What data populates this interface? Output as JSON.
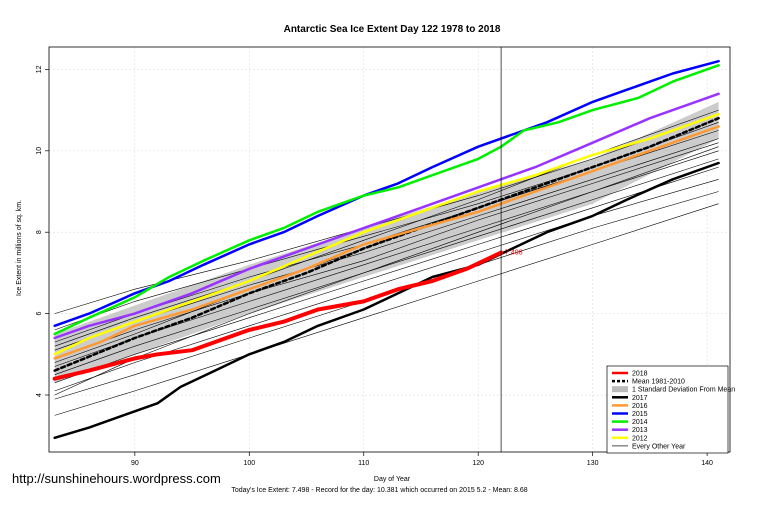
{
  "website": "http://sunshinehours.wordpress.com",
  "footer": "Today's Ice Extent: 7.498  - Record for the day: 10.381 which occurred on 2015 5.2  - Mean: 8.68",
  "chart_data": {
    "type": "line",
    "title": "Antarctic Sea Ice Extent Day 122 1978 to 2018",
    "xlabel": "Day of Year",
    "ylabel": "Ice Extent in millions of sq. km.",
    "xlim": [
      82.5,
      142
    ],
    "ylim": [
      2.6,
      12.55
    ],
    "xticks": [
      90,
      100,
      110,
      120,
      130,
      140
    ],
    "yticks": [
      4,
      6,
      8,
      10,
      12
    ],
    "current_day": 122,
    "current_value_label": "7.498",
    "legend_position": "bottom-right",
    "std_band": {
      "name": "1 Standard Deviation From Mean",
      "x": [
        83,
        90,
        100,
        110,
        120,
        130,
        141
      ],
      "upper": [
        5.5,
        6.2,
        7.2,
        8.1,
        9.0,
        9.8,
        11.2
      ],
      "lower": [
        4.3,
        5.0,
        6.0,
        6.9,
        7.8,
        8.7,
        10.3
      ]
    },
    "series": [
      {
        "name": "2018",
        "color": "#ff0000",
        "width": 4,
        "dash": "",
        "x": [
          83,
          86,
          90,
          92,
          95,
          98,
          100,
          103,
          106,
          110,
          113,
          116,
          119,
          122
        ],
        "y": [
          4.4,
          4.6,
          4.9,
          5.0,
          5.1,
          5.4,
          5.6,
          5.8,
          6.1,
          6.3,
          6.6,
          6.8,
          7.1,
          7.5
        ]
      },
      {
        "name": "Mean 1981-2010",
        "color": "#000000",
        "width": 2.5,
        "dash": "4,3",
        "x": [
          83,
          90,
          95,
          100,
          105,
          110,
          115,
          120,
          125,
          130,
          135,
          141
        ],
        "y": [
          4.6,
          5.4,
          5.9,
          6.5,
          7.0,
          7.6,
          8.1,
          8.6,
          9.1,
          9.6,
          10.1,
          10.8
        ]
      },
      {
        "name": "2017",
        "color": "#000000",
        "width": 2.5,
        "dash": "",
        "x": [
          83,
          86,
          90,
          92,
          94,
          97,
          100,
          103,
          106,
          110,
          113,
          116,
          120,
          123,
          126,
          130,
          133,
          137,
          141
        ],
        "y": [
          2.95,
          3.2,
          3.6,
          3.8,
          4.2,
          4.6,
          5.0,
          5.3,
          5.7,
          6.1,
          6.5,
          6.9,
          7.2,
          7.6,
          8.0,
          8.4,
          8.8,
          9.3,
          9.7
        ]
      },
      {
        "name": "2016",
        "color": "#ff9933",
        "width": 2.5,
        "dash": "",
        "x": [
          83,
          87,
          90,
          95,
          100,
          105,
          110,
          115,
          120,
          125,
          130,
          135,
          141
        ],
        "y": [
          4.9,
          5.3,
          5.7,
          6.1,
          6.6,
          7.1,
          7.7,
          8.1,
          8.5,
          9.0,
          9.5,
          10.0,
          10.6
        ]
      },
      {
        "name": "2015",
        "color": "#0000ff",
        "width": 2.5,
        "dash": "",
        "x": [
          83,
          86,
          90,
          93,
          96,
          100,
          103,
          106,
          110,
          113,
          116,
          120,
          123,
          126,
          130,
          133,
          137,
          141
        ],
        "y": [
          5.7,
          6.0,
          6.5,
          6.8,
          7.2,
          7.7,
          8.0,
          8.4,
          8.9,
          9.2,
          9.6,
          10.1,
          10.4,
          10.7,
          11.2,
          11.5,
          11.9,
          12.2
        ]
      },
      {
        "name": "2014",
        "color": "#00ee00",
        "width": 2.5,
        "dash": "",
        "x": [
          83,
          86,
          90,
          93,
          96,
          100,
          103,
          106,
          110,
          113,
          116,
          120,
          122,
          124,
          127,
          130,
          134,
          137,
          141
        ],
        "y": [
          5.5,
          5.9,
          6.4,
          6.9,
          7.3,
          7.8,
          8.1,
          8.5,
          8.9,
          9.1,
          9.4,
          9.8,
          10.1,
          10.5,
          10.7,
          11.0,
          11.3,
          11.7,
          12.1
        ]
      },
      {
        "name": "2013",
        "color": "#9933ff",
        "width": 2.5,
        "dash": "",
        "x": [
          83,
          86,
          90,
          95,
          100,
          105,
          110,
          115,
          120,
          125,
          130,
          135,
          141
        ],
        "y": [
          5.4,
          5.7,
          6.0,
          6.5,
          7.1,
          7.6,
          8.1,
          8.6,
          9.1,
          9.6,
          10.2,
          10.8,
          11.4
        ]
      },
      {
        "name": "2012",
        "color": "#ffff00",
        "width": 2.5,
        "dash": "",
        "x": [
          83,
          86,
          90,
          95,
          100,
          105,
          110,
          115,
          120,
          125,
          130,
          135,
          141
        ],
        "y": [
          5.0,
          5.4,
          5.8,
          6.3,
          6.8,
          7.4,
          8.0,
          8.5,
          9.0,
          9.4,
          9.9,
          10.3,
          10.9
        ]
      }
    ],
    "other_years": {
      "name": "Every Other Year",
      "color": "#000000",
      "x": [
        83,
        90,
        100,
        110,
        120,
        130,
        141
      ],
      "lines": [
        [
          6.0,
          6.6,
          7.3,
          8.1,
          8.9,
          9.8,
          10.9
        ],
        [
          5.6,
          6.3,
          7.1,
          7.9,
          8.7,
          9.6,
          10.7
        ],
        [
          5.3,
          6.0,
          6.9,
          7.7,
          8.6,
          9.5,
          10.5
        ],
        [
          5.1,
          5.8,
          6.7,
          7.5,
          8.4,
          9.3,
          10.3
        ],
        [
          4.9,
          5.6,
          6.5,
          7.3,
          8.3,
          9.2,
          10.2
        ],
        [
          4.7,
          5.4,
          6.3,
          7.2,
          8.1,
          9.0,
          10.0
        ],
        [
          4.5,
          5.2,
          6.1,
          7.0,
          7.9,
          8.8,
          9.8
        ],
        [
          4.3,
          5.0,
          5.9,
          6.8,
          7.7,
          8.6,
          9.6
        ],
        [
          4.1,
          4.8,
          5.7,
          6.6,
          7.5,
          8.4,
          9.3
        ],
        [
          3.9,
          4.5,
          5.4,
          6.3,
          7.2,
          8.1,
          9.0
        ],
        [
          3.5,
          4.1,
          5.0,
          5.9,
          6.8,
          7.7,
          8.7
        ],
        [
          4.0,
          4.9,
          6.0,
          7.0,
          8.0,
          9.0,
          10.1
        ],
        [
          4.8,
          5.5,
          6.6,
          7.6,
          8.6,
          9.5,
          10.6
        ],
        [
          5.2,
          5.9,
          6.8,
          7.8,
          8.8,
          9.9,
          11.0
        ]
      ]
    },
    "legend": [
      {
        "label": "2018",
        "kind": "line",
        "color": "#ff0000",
        "dash": ""
      },
      {
        "label": "Mean 1981-2010",
        "kind": "line",
        "color": "#000000",
        "dash": "3,2"
      },
      {
        "label": "1 Standard Deviation From Mean",
        "kind": "box",
        "color": "#bbbbbb",
        "dash": ""
      },
      {
        "label": "2017",
        "kind": "line",
        "color": "#000000",
        "dash": ""
      },
      {
        "label": "2016",
        "kind": "line",
        "color": "#ff9933",
        "dash": ""
      },
      {
        "label": "2015",
        "kind": "line",
        "color": "#0000ff",
        "dash": ""
      },
      {
        "label": "2014",
        "kind": "line",
        "color": "#00ee00",
        "dash": ""
      },
      {
        "label": "2013",
        "kind": "line",
        "color": "#9933ff",
        "dash": ""
      },
      {
        "label": "2012",
        "kind": "line",
        "color": "#ffff00",
        "dash": ""
      },
      {
        "label": "Every Other Year",
        "kind": "thin",
        "color": "#000000",
        "dash": ""
      }
    ]
  }
}
